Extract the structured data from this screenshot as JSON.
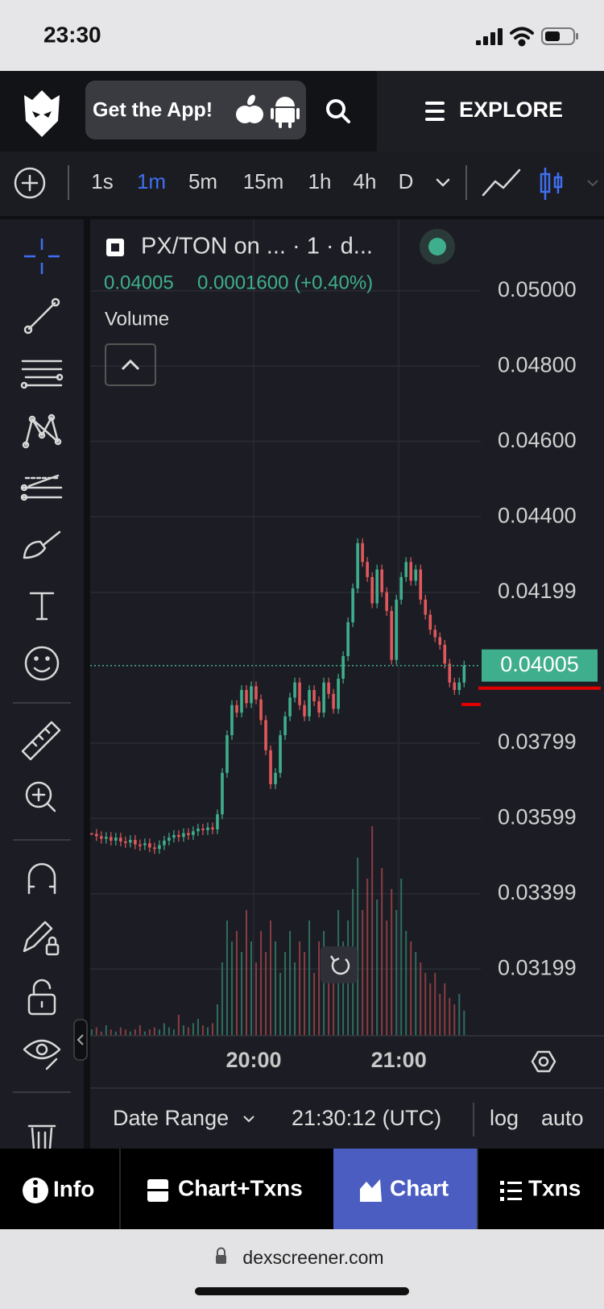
{
  "status_bar": {
    "time": "23:30"
  },
  "header": {
    "app_button": "Get the App!",
    "explore": "EXPLORE"
  },
  "toolbar": {
    "timeframes": [
      "1s",
      "1m",
      "5m",
      "15m",
      "1h",
      "4h",
      "D"
    ],
    "active": "1m"
  },
  "chart_data": {
    "type": "candlestick",
    "title": "PX/TON on ... · 1 · d...",
    "change": "0.0001600 (+0.40%)",
    "volume_label": "Volume",
    "x": [
      1133,
      1135,
      1137,
      1139,
      1141,
      1143,
      1145,
      1147,
      1149,
      1151,
      1153,
      1155,
      1157,
      1159,
      1161,
      1163,
      1165,
      1167,
      1169,
      1171,
      1173,
      1175,
      1177,
      1179,
      1181,
      1183,
      1185,
      1187,
      1189,
      1191,
      1193,
      1195,
      1197,
      1199,
      1201,
      1203,
      1205,
      1207,
      1209,
      1211,
      1213,
      1215,
      1217,
      1219,
      1221,
      1223,
      1225,
      1227,
      1229,
      1231,
      1233,
      1235,
      1237,
      1239,
      1241,
      1243,
      1245,
      1247,
      1249,
      1251,
      1253,
      1255,
      1257,
      1259,
      1261,
      1263,
      1265,
      1267,
      1269,
      1271,
      1273,
      1275,
      1277,
      1279,
      1281,
      1283,
      1285,
      1287
    ],
    "close": [
      0.03558,
      0.03552,
      0.03545,
      0.0355,
      0.0354,
      0.03548,
      0.03538,
      0.03535,
      0.03542,
      0.0353,
      0.03528,
      0.03533,
      0.03522,
      0.03518,
      0.03528,
      0.0354,
      0.03548,
      0.03555,
      0.0355,
      0.0356,
      0.03555,
      0.03565,
      0.03572,
      0.03568,
      0.03575,
      0.0357,
      0.0361,
      0.0372,
      0.0382,
      0.039,
      0.0388,
      0.0394,
      0.03905,
      0.0395,
      0.03915,
      0.0386,
      0.0378,
      0.0369,
      0.0372,
      0.0382,
      0.0387,
      0.0392,
      0.0396,
      0.039,
      0.0387,
      0.0394,
      0.0391,
      0.0388,
      0.0396,
      0.0393,
      0.0389,
      0.0397,
      0.0403,
      0.0412,
      0.0421,
      0.0433,
      0.0428,
      0.0424,
      0.0417,
      0.0426,
      0.042,
      0.0415,
      0.0402,
      0.0418,
      0.0424,
      0.0428,
      0.0423,
      0.0426,
      0.0418,
      0.0414,
      0.041,
      0.0408,
      0.0406,
      0.0401,
      0.0396,
      0.0394,
      0.0396,
      0.04005
    ],
    "volume": [
      3,
      4,
      2,
      5,
      3,
      2,
      4,
      3,
      2,
      3,
      5,
      2,
      3,
      4,
      3,
      6,
      4,
      3,
      10,
      5,
      4,
      6,
      8,
      5,
      4,
      6,
      15,
      35,
      55,
      45,
      50,
      40,
      60,
      45,
      35,
      50,
      40,
      55,
      45,
      30,
      40,
      50,
      35,
      45,
      40,
      55,
      30,
      45,
      50,
      35,
      40,
      60,
      45,
      55,
      70,
      85,
      60,
      75,
      100,
      65,
      80,
      55,
      70,
      60,
      75,
      50,
      45,
      40,
      35,
      30,
      25,
      30,
      20,
      25,
      18,
      15,
      20,
      12
    ],
    "up_color": "#3fae8c",
    "down_color": "#e0585b",
    "xlim": [
      1132.4,
      1293.9
    ],
    "xticks": [
      {
        "value": 1200,
        "label": "20:00"
      },
      {
        "value": 1260,
        "label": "21:00"
      }
    ],
    "ylim": [
      0.03022,
      0.0519
    ],
    "yticks": [
      {
        "value": 0.05,
        "label": "0.05000"
      },
      {
        "value": 0.048,
        "label": "0.04800"
      },
      {
        "value": 0.046,
        "label": "0.04600"
      },
      {
        "value": 0.044,
        "label": "0.04400"
      },
      {
        "value": 0.04199,
        "label": "0.04199"
      },
      {
        "value": 0.03799,
        "label": "0.03799"
      },
      {
        "value": 0.03599,
        "label": "0.03599"
      },
      {
        "value": 0.03399,
        "label": "0.03399"
      },
      {
        "value": 0.03199,
        "label": "0.03199"
      }
    ],
    "grid": true
  },
  "bottom_bar": {
    "date_range": "Date Range",
    "time": "21:30:12 (UTC)",
    "log": "log",
    "auto": "auto"
  },
  "tabs": {
    "items": [
      "Info",
      "Chart+Txns",
      "Chart",
      "Txns"
    ],
    "active": "Chart"
  },
  "url": "dexscreener.com"
}
